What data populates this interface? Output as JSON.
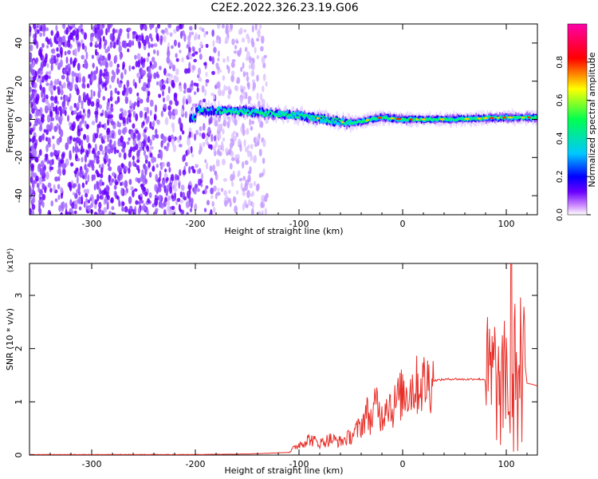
{
  "title": "C2E2.2022.326.23.19.G06",
  "chart_data": [
    {
      "type": "heatmap",
      "xlabel": "Height of straight line (km)",
      "ylabel": "Frequency (Hz)",
      "xlim": [
        -360,
        130
      ],
      "ylim": [
        -50,
        50
      ],
      "xticks": [
        -300,
        -200,
        -100,
        0,
        100
      ],
      "yticks": [
        -40,
        -20,
        0,
        20,
        40
      ],
      "colorbar": {
        "label": "Normalized spectral amplitude",
        "range": [
          0,
          1
        ],
        "ticks": [
          0.0,
          0.2,
          0.4,
          0.6,
          0.8
        ],
        "colormap": [
          "#ffffff",
          "#cc88ff",
          "#6a00ff",
          "#0000ff",
          "#00c8ff",
          "#00ff50",
          "#ffff00",
          "#ff0000",
          "#ff00aa"
        ]
      },
      "features": [
        {
          "name": "noise",
          "x_range": [
            -360,
            -130
          ],
          "freq_range": [
            -50,
            50
          ],
          "amplitude": 0.2
        },
        {
          "name": "signal",
          "x_range": [
            -205,
            130
          ],
          "center_freq_hz": [
            [
              -200,
              5
            ],
            [
              -150,
              4
            ],
            [
              -100,
              2
            ],
            [
              -50,
              -2
            ],
            [
              -20,
              1
            ],
            [
              0,
              0
            ],
            [
              50,
              0
            ],
            [
              100,
              1
            ],
            [
              130,
              1
            ]
          ],
          "peak_amplitude": 0.9
        }
      ],
      "grid": false
    },
    {
      "type": "line",
      "xlabel": "Height of straight line (km)",
      "ylabel": "SNR (10 * v/v)",
      "y_multiplier": "(x10⁴)",
      "xlim": [
        -360,
        130
      ],
      "ylim": [
        0,
        3.6
      ],
      "xticks": [
        -300,
        -200,
        -100,
        0,
        100
      ],
      "yticks": [
        0,
        1,
        2,
        3
      ],
      "series": [
        {
          "color": "#e8302a",
          "x": [
            -360,
            -300,
            -200,
            -150,
            -110,
            -100,
            -90,
            -80,
            -70,
            -60,
            -50,
            -40,
            -35,
            -30,
            -25,
            -20,
            -15,
            -10,
            -5,
            0,
            10,
            20,
            30,
            40,
            50,
            60,
            70,
            80,
            85,
            90,
            95,
            100,
            103,
            105,
            107,
            109,
            111,
            113,
            115,
            117,
            120,
            125,
            130
          ],
          "y": [
            0.01,
            0.01,
            0.01,
            0.02,
            0.05,
            0.2,
            0.3,
            0.22,
            0.3,
            0.25,
            0.35,
            0.55,
            0.8,
            0.65,
            1.0,
            0.7,
            1.1,
            0.85,
            1.05,
            1.15,
            1.28,
            1.35,
            1.4,
            1.42,
            1.43,
            1.42,
            1.43,
            1.42,
            1.4,
            1.5,
            0.9,
            2.1,
            0.5,
            3.0,
            0.4,
            3.3,
            0.3,
            2.2,
            0.5,
            1.9,
            1.35,
            1.33,
            1.3
          ]
        }
      ],
      "grid": false
    }
  ]
}
